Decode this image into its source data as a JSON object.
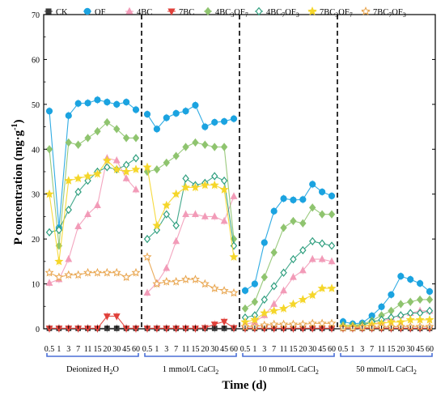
{
  "chart_data": {
    "type": "line",
    "ylabel": "P concentration (mg·g-1)",
    "xlabel": "Time (d)",
    "ylim": [
      0,
      70
    ],
    "yticks": [
      "0",
      "10",
      "20",
      "30",
      "40",
      "50",
      "60",
      "70"
    ],
    "xticks": [
      "0.5",
      "1",
      "3",
      "7",
      "11",
      "15",
      "20",
      "30",
      "45",
      "60"
    ],
    "panels": [
      {
        "label_main": "Deionized H",
        "label_sub": "2",
        "label_tail": "O"
      },
      {
        "label_main": "1 mmol/L CaCl",
        "label_sub": "2",
        "label_tail": ""
      },
      {
        "label_main": "10 mmol/L CaCl",
        "label_sub": "2",
        "label_tail": ""
      },
      {
        "label_main": "50 mmol/L CaCl",
        "label_sub": "2",
        "label_tail": ""
      }
    ],
    "legend": [
      {
        "main": "CK",
        "sub1": "",
        "mid": "",
        "sub2": ""
      },
      {
        "main": "OF",
        "sub1": "",
        "mid": "",
        "sub2": ""
      },
      {
        "main": "4BC",
        "sub1": "",
        "mid": "",
        "sub2": ""
      },
      {
        "main": "7BC",
        "sub1": "",
        "mid": "",
        "sub2": ""
      },
      {
        "main": "4BC",
        "sub1": "3",
        "mid": "OF",
        "sub2": "7"
      },
      {
        "main": "4BC",
        "sub1": "7",
        "mid": "OF",
        "sub2": "3"
      },
      {
        "main": "7BC",
        "sub1": "3",
        "mid": "OF",
        "sub2": "7"
      },
      {
        "main": "7BC",
        "sub1": "7",
        "mid": "OF",
        "sub2": "3"
      }
    ],
    "series": [
      {
        "name": "CK",
        "color": "#3a3a3a",
        "marker": "square",
        "filled": true,
        "values": [
          [
            0.1,
            0.1,
            0.1,
            0.1,
            0.1,
            0.1,
            0.1,
            0.1,
            0.1,
            0.1
          ],
          [
            0.1,
            0.1,
            0.1,
            0.1,
            0.1,
            0.1,
            0.1,
            0.1,
            0.1,
            0.1
          ],
          [
            0.1,
            0.1,
            0.1,
            0.1,
            0.1,
            0.1,
            0.1,
            0.1,
            0.1,
            0.1
          ],
          [
            0.1,
            0.1,
            0.1,
            0.1,
            0.1,
            0.1,
            0.1,
            0.1,
            0.1,
            0.1
          ]
        ]
      },
      {
        "name": "OF",
        "color": "#1ba3e0",
        "marker": "circle",
        "filled": true,
        "values": [
          [
            48.5,
            22.5,
            47.5,
            50.2,
            50.3,
            51.0,
            50.5,
            50.0,
            50.5,
            48.8
          ],
          [
            47.8,
            44.5,
            47.0,
            48.0,
            48.5,
            49.8,
            45.0,
            46.0,
            46.2,
            46.8
          ],
          [
            8.5,
            10.0,
            19.2,
            26.2,
            29.0,
            28.7,
            28.8,
            32.2,
            30.5,
            29.6
          ],
          [
            1.6,
            1.1,
            1.3,
            2.9,
            4.9,
            7.6,
            11.7,
            11.0,
            10.1,
            8.3
          ]
        ]
      },
      {
        "name": "4BC",
        "color": "#f29bb8",
        "marker": "triangle-up",
        "filled": true,
        "values": [
          [
            10.2,
            11.0,
            15.5,
            22.8,
            25.5,
            27.5,
            38.0,
            37.5,
            33.5,
            31.0
          ],
          [
            8.0,
            10.2,
            13.5,
            19.5,
            25.5,
            25.5,
            25.0,
            25.0,
            24.0,
            29.5
          ],
          [
            1.0,
            1.5,
            3.0,
            5.5,
            8.5,
            11.5,
            13.0,
            15.5,
            15.5,
            15.0
          ],
          [
            0.3,
            0.3,
            0.5,
            1.0,
            1.5,
            2.5,
            3.0,
            3.5,
            4.0,
            4.0
          ]
        ]
      },
      {
        "name": "7BC",
        "color": "#e0403a",
        "marker": "triangle-down",
        "filled": true,
        "values": [
          [
            0.1,
            0.1,
            0.1,
            0.1,
            0.1,
            0.1,
            2.8,
            2.8,
            0.1,
            0.1
          ],
          [
            0.1,
            0.1,
            0.1,
            0.1,
            0.1,
            0.1,
            0.2,
            1.0,
            1.6,
            0.2
          ],
          [
            0.1,
            0.1,
            0.1,
            0.1,
            0.1,
            0.1,
            0.1,
            0.1,
            0.1,
            0.1
          ],
          [
            0.1,
            0.1,
            0.1,
            0.1,
            0.1,
            0.1,
            0.1,
            0.1,
            0.1,
            0.1
          ]
        ]
      },
      {
        "name": "4BC3OF7",
        "color": "#8fc46f",
        "marker": "diamond",
        "filled": true,
        "values": [
          [
            40.0,
            18.5,
            41.5,
            41.0,
            42.5,
            44.0,
            46.0,
            44.5,
            42.5,
            42.5
          ],
          [
            35.0,
            35.5,
            37.0,
            38.5,
            40.5,
            41.5,
            41.0,
            40.5,
            40.5,
            20.0
          ],
          [
            4.5,
            6.0,
            11.5,
            17.0,
            22.5,
            24.0,
            23.5,
            27.0,
            25.5,
            25.5
          ],
          [
            0.8,
            0.8,
            1.0,
            1.8,
            3.0,
            4.0,
            5.5,
            6.0,
            6.5,
            6.5
          ]
        ]
      },
      {
        "name": "4BC7OF3",
        "color": "#2e9e7e",
        "marker": "diamond",
        "filled": false,
        "values": [
          [
            21.5,
            22.0,
            26.5,
            30.5,
            33.0,
            35.0,
            36.0,
            35.5,
            36.5,
            38.0
          ],
          [
            20.0,
            22.0,
            25.5,
            23.0,
            33.5,
            32.0,
            32.5,
            34.0,
            33.0,
            18.5
          ],
          [
            2.5,
            3.0,
            6.5,
            9.5,
            12.5,
            15.5,
            17.5,
            19.5,
            19.0,
            18.5
          ],
          [
            0.5,
            0.5,
            0.8,
            1.5,
            2.0,
            2.5,
            3.0,
            3.5,
            3.5,
            4.0
          ]
        ]
      },
      {
        "name": "7BC3OF7",
        "color": "#f5d62a",
        "marker": "star",
        "filled": true,
        "values": [
          [
            30.0,
            15.0,
            33.0,
            33.5,
            34.0,
            34.5,
            37.5,
            35.5,
            35.0,
            35.5
          ],
          [
            36.0,
            23.0,
            27.5,
            30.0,
            31.5,
            31.5,
            32.0,
            32.0,
            31.0,
            16.0
          ],
          [
            1.5,
            2.0,
            3.5,
            4.0,
            4.5,
            5.5,
            6.5,
            7.5,
            9.0,
            9.0
          ],
          [
            0.5,
            0.5,
            0.5,
            1.0,
            1.2,
            1.5,
            1.5,
            2.0,
            2.0,
            2.0
          ]
        ]
      },
      {
        "name": "7BC7OF3",
        "color": "#e8a34a",
        "marker": "star",
        "filled": false,
        "values": [
          [
            12.5,
            11.5,
            12.0,
            12.0,
            12.5,
            12.5,
            12.5,
            12.5,
            11.5,
            12.5
          ],
          [
            16.0,
            10.0,
            10.5,
            10.5,
            11.0,
            11.0,
            10.0,
            9.0,
            8.5,
            8.0
          ],
          [
            0.5,
            0.5,
            0.8,
            1.0,
            1.0,
            1.0,
            1.0,
            1.2,
            1.2,
            1.2
          ],
          [
            0.2,
            0.2,
            0.3,
            0.3,
            0.4,
            0.4,
            0.5,
            0.5,
            0.5,
            0.5
          ]
        ]
      }
    ]
  }
}
